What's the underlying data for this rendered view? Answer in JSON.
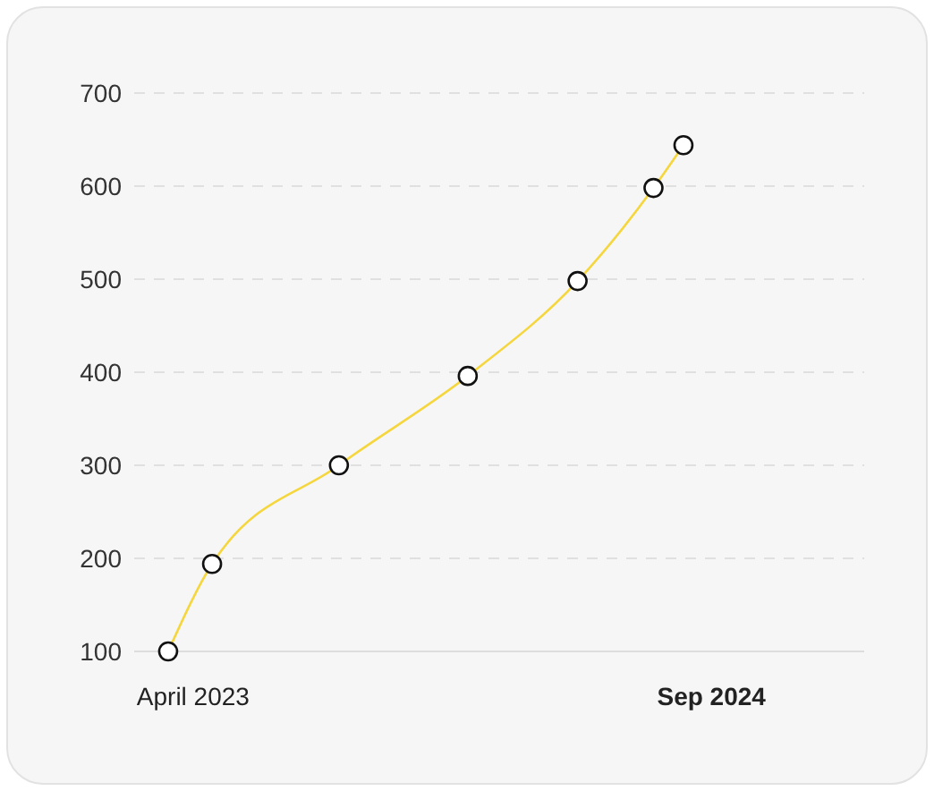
{
  "chart_data": {
    "type": "line",
    "x": [
      "2023-03-07",
      "2023-04-20",
      "2023-08-25",
      "2024-01-01",
      "2024-04-20",
      "2024-07-05",
      "2024-08-04"
    ],
    "series": [
      {
        "color": "#f5d63d",
        "values": [
          100,
          194,
          300,
          396,
          498,
          598,
          644
        ]
      }
    ],
    "xlim": [
      "2023-02-01",
      "2025-02-01"
    ],
    "xticks": [
      {
        "value": "2023-04-01",
        "label": "April 2023"
      },
      {
        "value": "2024-09-01",
        "label": "Sep 2024"
      }
    ],
    "ylim": [
      100,
      700
    ],
    "yticks": [
      100,
      200,
      300,
      400,
      500,
      600,
      700
    ],
    "grid": "y",
    "marker": "circle"
  }
}
